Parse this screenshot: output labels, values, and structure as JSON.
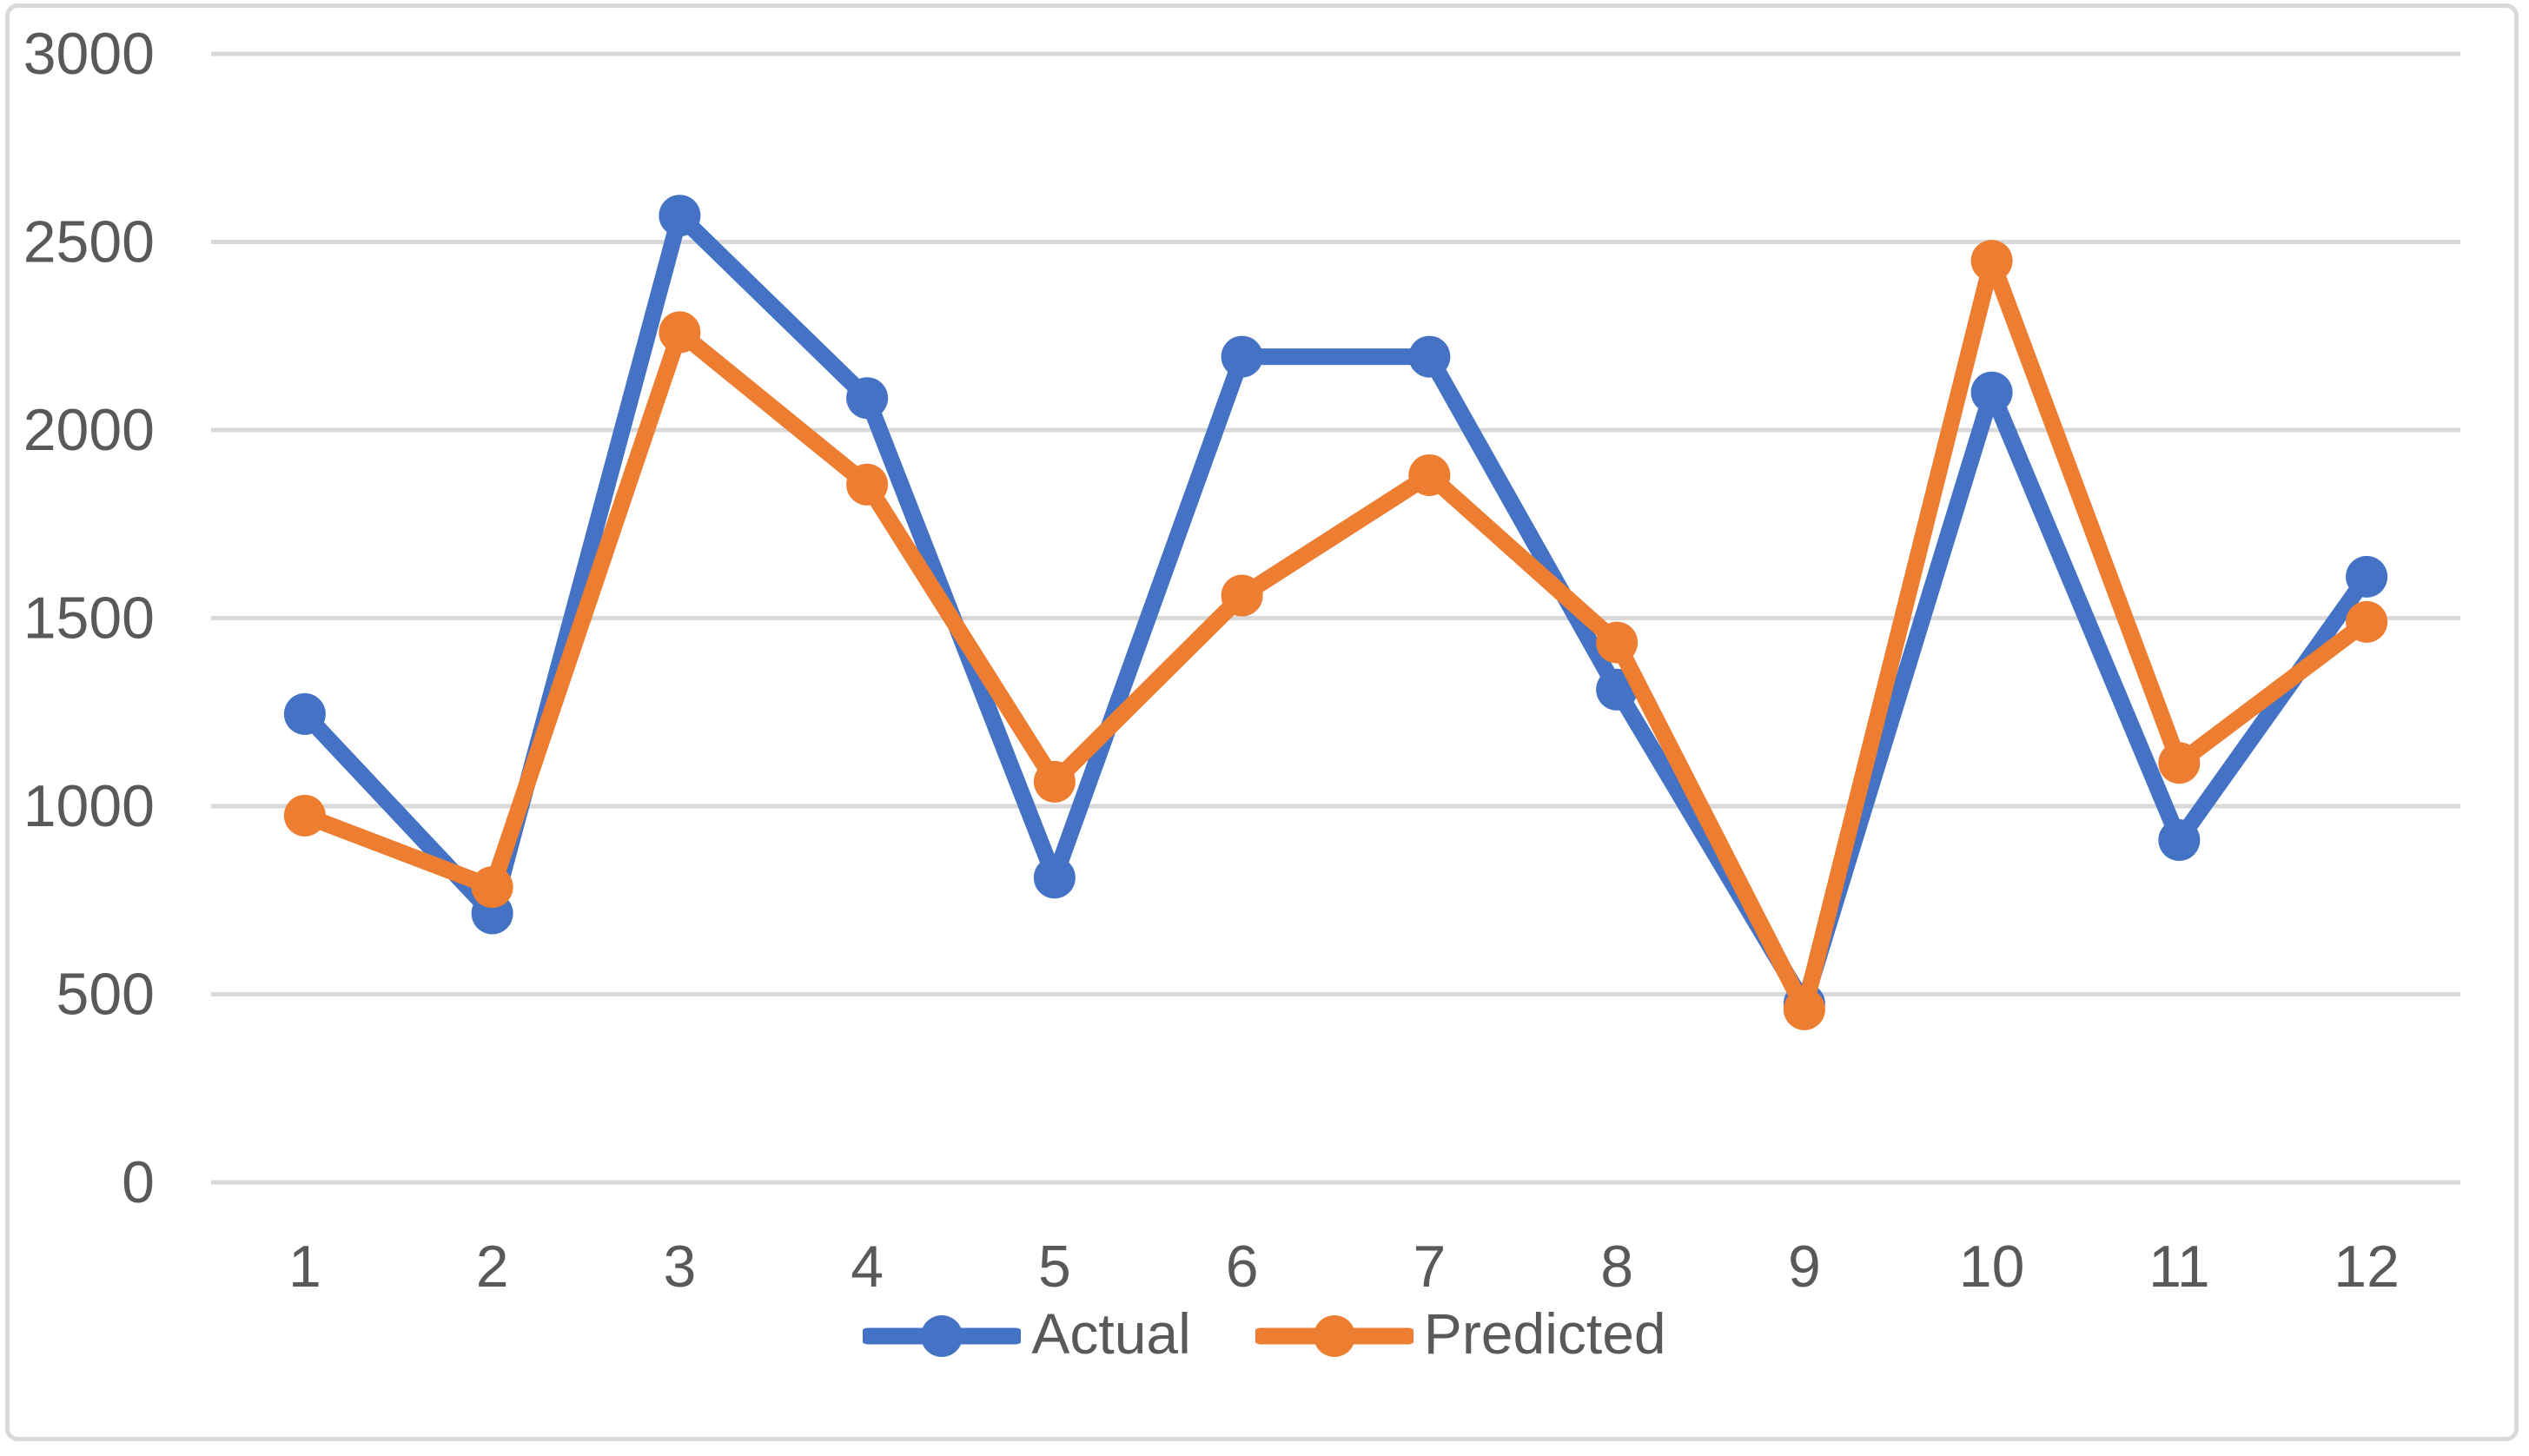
{
  "chart_data": {
    "type": "line",
    "title": "",
    "xlabel": "",
    "ylabel": "",
    "categories": [
      "1",
      "2",
      "3",
      "4",
      "5",
      "6",
      "7",
      "8",
      "9",
      "10",
      "11",
      "12"
    ],
    "series": [
      {
        "name": "Actual",
        "color": "#4472C4",
        "values": [
          1245,
          715,
          2570,
          2085,
          810,
          2195,
          2195,
          1310,
          475,
          2100,
          910,
          1610
        ]
      },
      {
        "name": "Predicted",
        "color": "#ED7D31",
        "values": [
          975,
          785,
          2260,
          1855,
          1065,
          1560,
          1880,
          1435,
          460,
          2450,
          1115,
          1490
        ]
      }
    ],
    "ylim": [
      0,
      3000
    ],
    "y_ticks": [
      "0",
      "500",
      "1000",
      "1500",
      "2000",
      "2500",
      "3000"
    ],
    "grid": true,
    "legend_position": "bottom",
    "marker": "circle"
  },
  "style": {
    "background": "#FFFFFF",
    "grid_color": "#D9D9D9",
    "axis_line_color": "#D9D9D9",
    "border_color": "#D9D9D9",
    "tick_text_color": "#595959",
    "legend_text_color": "#595959"
  }
}
